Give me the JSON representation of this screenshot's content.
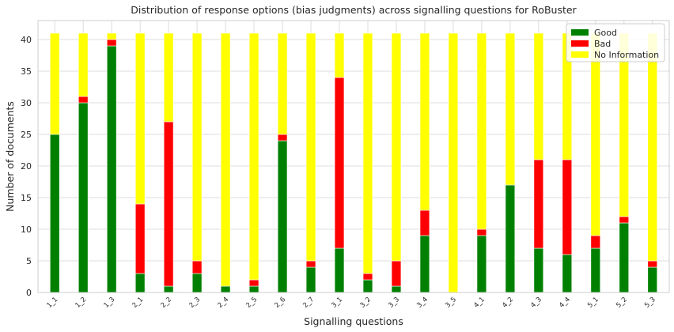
{
  "chart_data": {
    "type": "bar",
    "stacked": true,
    "title": "Distribution of response options (bias judgments) across signalling questions for RoBuster",
    "xlabel": "Signalling questions",
    "ylabel": "Number of documents",
    "ylim": [
      0,
      43
    ],
    "yticks": [
      0,
      5,
      10,
      15,
      20,
      25,
      30,
      35,
      40
    ],
    "grid": true,
    "legend_position": "top-right",
    "categories": [
      "1_1",
      "1_2",
      "1_3",
      "2_1",
      "2_2",
      "2_3",
      "2_4",
      "2_5",
      "2_6",
      "2_7",
      "3_1",
      "3_2",
      "3_3",
      "3_4",
      "3_5",
      "4_1",
      "4_2",
      "4_3",
      "4_4",
      "5_1",
      "5_2",
      "5_3"
    ],
    "series": [
      {
        "name": "Good",
        "color": "#008000",
        "values": [
          25,
          30,
          39,
          3,
          1,
          3,
          1,
          1,
          24,
          4,
          7,
          2,
          1,
          9,
          0,
          9,
          17,
          7,
          6,
          7,
          11,
          4
        ]
      },
      {
        "name": "Bad",
        "color": "#ff0000",
        "values": [
          0,
          1,
          1,
          11,
          26,
          2,
          0,
          1,
          1,
          1,
          27,
          1,
          4,
          4,
          0,
          1,
          0,
          14,
          15,
          2,
          1,
          1
        ]
      },
      {
        "name": "No Information",
        "color": "#ffff00",
        "values": [
          16,
          10,
          1,
          27,
          14,
          36,
          40,
          39,
          16,
          36,
          7,
          38,
          36,
          28,
          41,
          31,
          24,
          20,
          20,
          32,
          29,
          36
        ]
      }
    ]
  }
}
